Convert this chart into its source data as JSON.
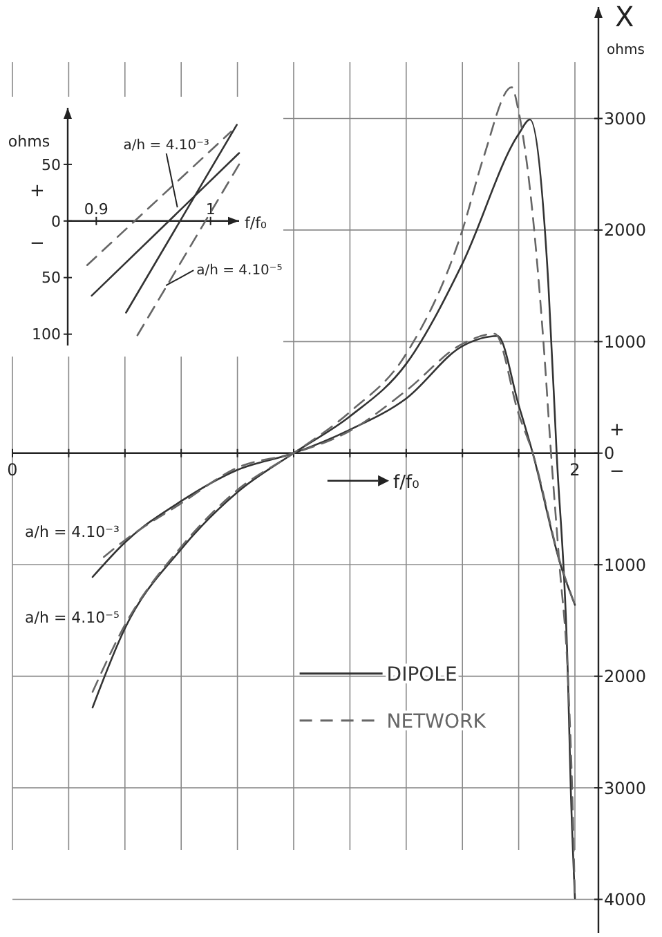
{
  "chart_data": [
    {
      "type": "line",
      "ylabel": "X",
      "xlabel": "f/f₀",
      "annotations": [
        "ohms",
        "+",
        "−",
        {
          "text": "a/h = 4.10⁻³",
          "x": 0.4,
          "y": -800
        },
        {
          "text": "a/h = 4.10⁻⁵",
          "x": 0.4,
          "y": -1570
        }
      ],
      "xlim": [
        0,
        2
      ],
      "ylim": [
        -4300,
        4000
      ],
      "xticks": [
        {
          "value": 0,
          "label": "0"
        },
        {
          "value": 0.2,
          "label": null
        },
        {
          "value": 0.4,
          "label": null
        },
        {
          "value": 0.6,
          "label": null
        },
        {
          "value": 0.8,
          "label": null
        },
        {
          "value": 1,
          "label": null
        },
        {
          "value": 1.2,
          "label": null
        },
        {
          "value": 1.4,
          "label": null
        },
        {
          "value": 1.6,
          "label": null
        },
        {
          "value": 1.8,
          "label": null
        },
        {
          "value": 2,
          "label": "2"
        }
      ],
      "yticks": [
        3000,
        2000,
        1000,
        0,
        {
          "value": -1000,
          "label": "1000"
        },
        {
          "value": -2000,
          "label": "2000"
        },
        {
          "value": -3000,
          "label": "3000"
        },
        {
          "value": -4000,
          "label": "4000"
        }
      ],
      "grid": true,
      "legend": "bottom",
      "series": [
        {
          "name": "DIPOLE",
          "color": "#333333",
          "line_style": "solid",
          "x": [
            0.285,
            0.4,
            0.6,
            0.8,
            1.0,
            1.2,
            1.4,
            1.6,
            1.725,
            1.8,
            1.85,
            1.95,
            2.0
          ],
          "values": [
            -1110,
            -800,
            -430,
            -150,
            0,
            210,
            490,
            960,
            1050,
            430,
            0,
            -1010,
            -1360
          ]
        },
        {
          "color": "#333333",
          "line_style": "solid",
          "x": [
            0.285,
            0.4,
            0.6,
            0.8,
            1.0,
            1.2,
            1.4,
            1.6,
            1.8,
            1.84,
            1.905,
            1.935,
            1.975,
            1.985,
            2.0
          ],
          "values": [
            -2280,
            -1570,
            -860,
            -350,
            0,
            330,
            800,
            1700,
            2860,
            2990,
            1540,
            0,
            -2000,
            -2990,
            -3990
          ]
        },
        {
          "name": "NETWORK",
          "color": "#666666",
          "line_style": "dashed",
          "x": [
            0.325,
            0.4,
            0.6,
            0.8,
            1.0,
            1.2,
            1.4,
            1.6,
            1.715,
            1.8,
            1.85,
            1.95,
            2.0
          ],
          "values": [
            -930,
            -780,
            -450,
            -130,
            0,
            200,
            560,
            980,
            1070,
            350,
            0,
            -1000,
            -1360
          ]
        },
        {
          "color": "#666666",
          "line_style": "dashed",
          "x": [
            0.285,
            0.4,
            0.6,
            0.8,
            1.0,
            1.2,
            1.4,
            1.6,
            1.675,
            1.775,
            1.8,
            1.84,
            1.89,
            1.915,
            1.945,
            1.975,
            1.99,
            2.0
          ],
          "values": [
            -2140,
            -1540,
            -840,
            -330,
            0,
            370,
            890,
            2000,
            2650,
            3280,
            3060,
            2370,
            930,
            0,
            -1000,
            -2000,
            -3000,
            -4000
          ]
        }
      ]
    },
    {
      "type": "line",
      "ylabel": "ohms",
      "xlabel": "f/f₀",
      "annotations": [
        "+",
        "−",
        {
          "text": "a/h = 4.10⁻³",
          "x": 0.971,
          "y": 12
        },
        {
          "text": "a/h = 4.10⁻⁵",
          "x": 0.961,
          "y": -57
        }
      ],
      "xlim": [
        0.875,
        1.025
      ],
      "ylim": [
        -110,
        100
      ],
      "xticks": [
        {
          "value": 0.9,
          "label": "0.9"
        },
        1
      ],
      "yticks": [
        50,
        0,
        {
          "value": -50,
          "label": "50"
        },
        {
          "value": -100,
          "label": "100"
        }
      ],
      "series": [
        {
          "color": "#333333",
          "line_style": "solid",
          "x": [
            0.896,
            1.025
          ],
          "values": [
            -66,
            60
          ]
        },
        {
          "color": "#666666",
          "line_style": "dashed",
          "x": [
            0.892,
            1.018
          ],
          "values": [
            -39,
            79
          ]
        },
        {
          "color": "#333333",
          "line_style": "solid",
          "x": [
            0.926,
            1.023
          ],
          "values": [
            -81,
            85
          ]
        },
        {
          "color": "#666666",
          "line_style": "dashed",
          "x": [
            0.936,
            1.025
          ],
          "values": [
            -101,
            50
          ]
        }
      ]
    }
  ]
}
